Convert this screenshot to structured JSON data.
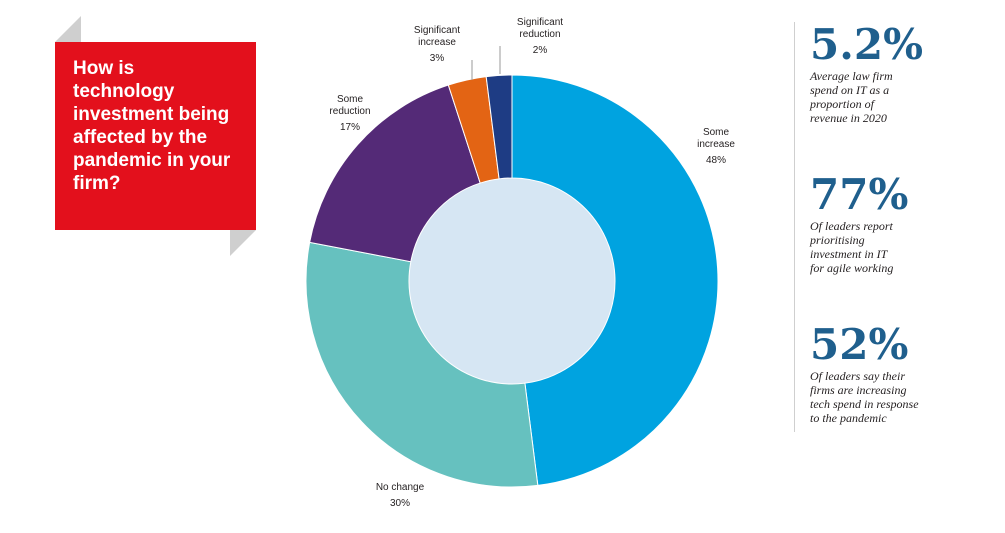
{
  "question": {
    "line1": "How is",
    "line2": "technology",
    "line3": "investment being",
    "line4": "affected by the",
    "line5": "pandemic in your",
    "line6": "firm?"
  },
  "colors": {
    "question_panel": "#e3101c",
    "stat_value": "#1f5f8d"
  },
  "chart_data": {
    "type": "pie",
    "style": "donut",
    "categories": [
      "Some increase",
      "No change",
      "Some reduction",
      "Significant increase",
      "Significant reduction"
    ],
    "values": [
      48,
      30,
      17,
      3,
      2
    ],
    "labels": [
      {
        "lines": [
          "Some",
          "increase"
        ],
        "value": "48%"
      },
      {
        "lines": [
          "No change"
        ],
        "value": "30%"
      },
      {
        "lines": [
          "Some",
          "reduction"
        ],
        "value": "17%"
      },
      {
        "lines": [
          "Significant",
          "increase"
        ],
        "value": "3%"
      },
      {
        "lines": [
          "Significant",
          "reduction"
        ],
        "value": "2%"
      }
    ],
    "colors": [
      "#00a3e0",
      "#66c1bf",
      "#542a77",
      "#e36414",
      "#1e3c84"
    ],
    "center_color": "#d6e6f3"
  },
  "stats": [
    {
      "value": "5.2%",
      "line1": "Average law firm",
      "line2": "spend on IT as a",
      "line3": "proportion of",
      "line4": "revenue in 2020"
    },
    {
      "value": "77%",
      "line1": "Of leaders report",
      "line2": "prioritising",
      "line3": "investment in IT",
      "line4": "for agile working"
    },
    {
      "value": "52%",
      "line1": "Of leaders say their",
      "line2": "firms are increasing",
      "line3": "tech spend in response",
      "line4": "to the pandemic"
    }
  ]
}
